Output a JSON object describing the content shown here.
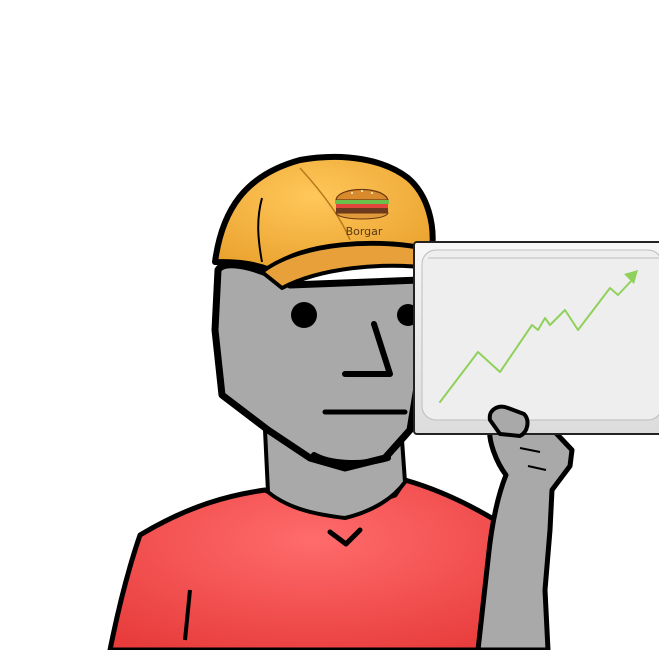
{
  "cap": {
    "label": "Borgar",
    "badge_icon": "burger-icon"
  },
  "colors": {
    "background": "#ffffff",
    "skin": "#a9a9a9",
    "shirt": "#f24a4a",
    "cap": "#f5b13c",
    "outline": "#000000",
    "board": "#ececec",
    "trend": "#8fd15a"
  },
  "sign": {
    "icon": "trend-up-icon",
    "trend_direction": "up"
  }
}
